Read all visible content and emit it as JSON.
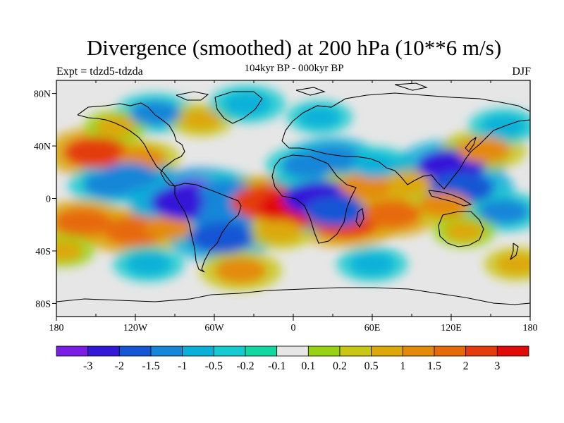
{
  "title": "Divergence (smoothed) at 200 hPa (10**6 m/s)",
  "subtitle": "104kyr BP - 000kyr BP",
  "left_label": "Expt = tdzd5-tdzda",
  "right_label": "DJF",
  "lat_ticks": [
    "80N",
    "40N",
    "0",
    "40S",
    "80S"
  ],
  "lon_ticks": [
    "180",
    "120W",
    "60W",
    "0",
    "60E",
    "120E",
    "180"
  ],
  "colorbar": {
    "labels": [
      "-3",
      "-2",
      "-1.5",
      "-1",
      "-0.5",
      "-0.2",
      "-0.1",
      "0.1",
      "0.2",
      "0.5",
      "1",
      "1.5",
      "2",
      "3"
    ],
    "colors": [
      "#7a1ee6",
      "#3418d8",
      "#1456d4",
      "#1686d8",
      "#0ab0d8",
      "#14ccd0",
      "#10d8a0",
      "#e6e6e6",
      "#98d214",
      "#c8c814",
      "#dca80a",
      "#e48a0a",
      "#e66a08",
      "#e43c0c",
      "#e00a0a"
    ]
  },
  "chart_data": {
    "type": "heatmap",
    "title": "Divergence (smoothed) at 200 hPa (10**6 m/s)",
    "subtitle": "104kyr BP - 000kyr BP",
    "experiment": "Expt = tdzd5-tdzda",
    "season": "DJF",
    "x_ticks": [
      "180",
      "120W",
      "60W",
      "0",
      "60E",
      "120E",
      "180"
    ],
    "y_ticks": [
      "80N",
      "40N",
      "0",
      "40S",
      "80S"
    ],
    "x_range": [
      -180,
      180
    ],
    "y_range": [
      -90,
      90
    ],
    "levels": [
      -3,
      -2,
      -1.5,
      -1,
      -0.5,
      -0.2,
      -0.1,
      0.1,
      0.2,
      0.5,
      1,
      1.5,
      2,
      3
    ],
    "anomalies": [
      {
        "lon": -150,
        "lat": 35,
        "value": 2.0
      },
      {
        "lon": -115,
        "lat": 30,
        "value": 1.0
      },
      {
        "lon": -140,
        "lat": 10,
        "value": -1.2
      },
      {
        "lon": -125,
        "lat": 17,
        "value": -1.5
      },
      {
        "lon": -160,
        "lat": -18,
        "value": 1.6
      },
      {
        "lon": -120,
        "lat": -25,
        "value": 1.9
      },
      {
        "lon": -95,
        "lat": -22,
        "value": 1.0
      },
      {
        "lon": -175,
        "lat": -40,
        "value": 0.5
      },
      {
        "lon": -70,
        "lat": 0,
        "value": -3.2
      },
      {
        "lon": -80,
        "lat": -3,
        "value": -2.6
      },
      {
        "lon": -50,
        "lat": -10,
        "value": -1.5
      },
      {
        "lon": -52,
        "lat": 5,
        "value": -1.2
      },
      {
        "lon": -52,
        "lat": -20,
        "value": -1.4
      },
      {
        "lon": -55,
        "lat": -30,
        "value": -2.0
      },
      {
        "lon": -20,
        "lat": -3,
        "value": 2.4
      },
      {
        "lon": 5,
        "lat": -7,
        "value": 3.0
      },
      {
        "lon": 40,
        "lat": -18,
        "value": 2.2
      },
      {
        "lon": -10,
        "lat": -25,
        "value": 0.8
      },
      {
        "lon": 20,
        "lat": 0,
        "value": -2.5
      },
      {
        "lon": 32,
        "lat": -10,
        "value": -1.8
      },
      {
        "lon": 10,
        "lat": 25,
        "value": -1.2
      },
      {
        "lon": 30,
        "lat": 30,
        "value": -1.5
      },
      {
        "lon": 55,
        "lat": 10,
        "value": 1.3
      },
      {
        "lon": 62,
        "lat": 25,
        "value": -1.0
      },
      {
        "lon": 90,
        "lat": 12,
        "value": 0.9
      },
      {
        "lon": 75,
        "lat": -12,
        "value": 1.6
      },
      {
        "lon": 120,
        "lat": 25,
        "value": -2.2
      },
      {
        "lon": 128,
        "lat": 8,
        "value": -2.0
      },
      {
        "lon": 115,
        "lat": -5,
        "value": 1.2
      },
      {
        "lon": 160,
        "lat": -10,
        "value": -1.2
      },
      {
        "lon": 130,
        "lat": -25,
        "value": 0.5
      },
      {
        "lon": 145,
        "lat": 37,
        "value": 1.3
      },
      {
        "lon": -105,
        "lat": 65,
        "value": -1.2
      },
      {
        "lon": -70,
        "lat": 60,
        "value": 0.6
      },
      {
        "lon": -35,
        "lat": 72,
        "value": -1.0
      },
      {
        "lon": 160,
        "lat": 55,
        "value": -0.8
      },
      {
        "lon": 20,
        "lat": 62,
        "value": -0.6
      },
      {
        "lon": -135,
        "lat": 55,
        "value": 0.5
      },
      {
        "lon": -40,
        "lat": -55,
        "value": 1.2
      },
      {
        "lon": 60,
        "lat": -50,
        "value": -0.8
      },
      {
        "lon": -110,
        "lat": -50,
        "value": -0.8
      },
      {
        "lon": 170,
        "lat": -50,
        "value": 0.6
      }
    ]
  }
}
